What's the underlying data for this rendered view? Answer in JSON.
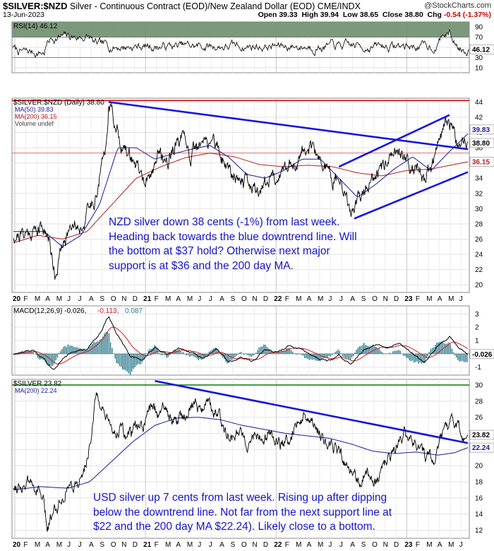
{
  "header": {
    "symbol": "$SILVER:$NZD",
    "description": "Silver - Continuous Contract (EOD)/New Zealand Dollar (EOD) CME/INDX",
    "date": "13-Jun-2023",
    "brand": "@StockCharts.com",
    "ohlc": {
      "open_label": "Open",
      "open": "39.33",
      "high_label": "High",
      "high": "39.94",
      "low_label": "Low",
      "low": "38.65",
      "close_label": "Close",
      "close": "38.80",
      "chg_label": "Chg",
      "chg": "-0.54 (-1.37%)"
    }
  },
  "annotations": {
    "nzd": [
      "NZD silver down 38 cents (-1%) from last week.",
      "Heading back towards the blue downtrend line. Will",
      "the bottom at $37 hold? Otherwise next major",
      "support is at $36 and the 200 day MA."
    ],
    "usd": [
      "USD silver up 7 cents from last week. Rising up after dipping",
      "below the downtrend line. Not far from the next support line at",
      "$22 and the 200 day MA $22.24). Likely close to a bottom."
    ]
  },
  "colors": {
    "price": "#000000",
    "ma50": "#1a1a9a",
    "ma200": "#b02020",
    "trend": "#1515e0",
    "support": "#d40000",
    "green": "#008000",
    "rsi_fill": "#6e8e6e",
    "macd_hist": "#2e7a8a"
  },
  "chart_data": [
    {
      "type": "line",
      "panel": "rsi",
      "legend": "RSI(14) 46.12",
      "yticks": [
        10,
        30,
        50,
        70,
        90
      ],
      "ylim": [
        0,
        100
      ],
      "reference_lines": [
        30,
        70
      ],
      "value_label": "46.12",
      "last": 46.12
    },
    {
      "type": "line",
      "panel": "silver_nzd",
      "legend_title": "$SILVER:$NZD (Daily) 38.80",
      "legend": [
        "MA(50) 39.83",
        "MA(200) 36.15",
        "Volume undef"
      ],
      "ylim": [
        19,
        44.5
      ],
      "yticks": [
        20,
        22,
        24,
        26,
        28,
        30,
        32,
        34,
        36,
        38,
        40,
        42,
        44
      ],
      "x_labels": [
        "20",
        "F",
        "M",
        "A",
        "M",
        "J",
        "J",
        "A",
        "S",
        "O",
        "N",
        "D",
        "21",
        "F",
        "M",
        "A",
        "M",
        "J",
        "J",
        "A",
        "S",
        "O",
        "N",
        "D",
        "22",
        "F",
        "M",
        "A",
        "M",
        "J",
        "J",
        "A",
        "S",
        "O",
        "N",
        "D",
        "23",
        "F",
        "M",
        "A",
        "M",
        "J"
      ],
      "x_bold": [
        "20",
        "21",
        "22",
        "23"
      ],
      "key_points": [
        [
          0,
          26.5
        ],
        [
          3,
          27
        ],
        [
          4.5,
          27.5
        ],
        [
          5.5,
          27
        ],
        [
          6.8,
          21.5
        ],
        [
          7.6,
          24
        ],
        [
          8.3,
          25.5
        ],
        [
          9.5,
          28.5
        ],
        [
          11,
          27.5
        ],
        [
          13.5,
          32
        ],
        [
          15,
          38
        ],
        [
          15.5,
          43.8
        ],
        [
          16.5,
          41.5
        ],
        [
          18,
          37.5
        ],
        [
          19.5,
          36.5
        ],
        [
          21,
          34
        ],
        [
          22,
          33
        ],
        [
          23.5,
          37.5
        ],
        [
          25,
          36
        ],
        [
          26,
          38
        ],
        [
          27.5,
          39
        ],
        [
          29,
          37
        ],
        [
          30.5,
          38.2
        ],
        [
          32.5,
          39.2
        ],
        [
          34,
          36.5
        ],
        [
          35.5,
          35
        ],
        [
          37,
          34
        ],
        [
          38.5,
          33
        ],
        [
          40,
          32.5
        ],
        [
          41.5,
          33.8
        ],
        [
          43,
          34.5
        ],
        [
          44.5,
          35.5
        ],
        [
          46,
          36
        ],
        [
          47.5,
          38.5
        ],
        [
          49,
          37
        ],
        [
          50.5,
          36
        ],
        [
          52,
          34
        ],
        [
          53.5,
          33
        ],
        [
          54.5,
          30
        ],
        [
          55.5,
          29.5
        ],
        [
          56.5,
          31.5
        ],
        [
          58,
          33.5
        ],
        [
          59.5,
          35
        ],
        [
          61,
          35.5
        ],
        [
          62.5,
          38
        ],
        [
          64,
          36.5
        ],
        [
          65.5,
          35
        ],
        [
          67,
          34
        ],
        [
          68,
          35.5
        ],
        [
          69.5,
          39
        ],
        [
          70.5,
          41.5
        ],
        [
          71.5,
          40.5
        ],
        [
          72.5,
          38.5
        ],
        [
          73.5,
          39.5
        ],
        [
          74,
          38.8
        ]
      ],
      "ma50": [
        [
          5,
          27
        ],
        [
          8,
          25
        ],
        [
          11,
          26.5
        ],
        [
          14,
          30.5
        ],
        [
          17,
          38
        ],
        [
          20,
          38
        ],
        [
          23,
          36.5
        ],
        [
          26,
          37.2
        ],
        [
          29,
          37.8
        ],
        [
          32,
          38.3
        ],
        [
          35,
          36.8
        ],
        [
          38,
          34.5
        ],
        [
          41,
          34
        ],
        [
          44,
          35
        ],
        [
          47,
          36.5
        ],
        [
          50,
          36.5
        ],
        [
          53,
          34
        ],
        [
          56,
          31.5
        ],
        [
          59,
          33.2
        ],
        [
          62,
          35.2
        ],
        [
          65,
          36.8
        ],
        [
          68,
          35
        ],
        [
          71,
          37.5
        ],
        [
          74,
          39.83
        ]
      ],
      "ma200": [
        [
          0,
          25.5
        ],
        [
          4,
          26.5
        ],
        [
          8,
          26
        ],
        [
          12,
          27
        ],
        [
          16,
          30.5
        ],
        [
          20,
          34
        ],
        [
          24,
          35.5
        ],
        [
          28,
          36.7
        ],
        [
          32,
          37.3
        ],
        [
          36,
          36.8
        ],
        [
          40,
          35.8
        ],
        [
          44,
          35.5
        ],
        [
          48,
          35.7
        ],
        [
          52,
          35.5
        ],
        [
          56,
          34.7
        ],
        [
          60,
          34.3
        ],
        [
          64,
          35
        ],
        [
          68,
          35.2
        ],
        [
          74,
          36.15
        ]
      ],
      "horizontal_line": 44.2,
      "support_line": 37.3,
      "downtrend": [
        [
          15.5,
          44
        ],
        [
          74,
          37.8
        ]
      ],
      "channel_upper": [
        [
          53,
          35.5
        ],
        [
          71,
          42.3
        ]
      ],
      "channel_lower": [
        [
          55.5,
          28.7
        ],
        [
          74,
          34.8
        ]
      ],
      "value_labels": [
        "39.83",
        "38.80",
        "36.15"
      ],
      "last_values": [
        39.83,
        38.8,
        36.15
      ]
    },
    {
      "type": "line",
      "panel": "macd",
      "legend": [
        "MACD(12,26,9) -0.026,",
        "-0.113,",
        "0.087"
      ],
      "ylim": [
        -1.6,
        3.6
      ],
      "yticks": [
        -1,
        0,
        1,
        2,
        3
      ],
      "value_label": "-0.026",
      "key_points": [
        [
          0,
          0
        ],
        [
          3,
          0.2
        ],
        [
          5,
          -0.3
        ],
        [
          6.5,
          -1.1
        ],
        [
          8,
          -0.3
        ],
        [
          10,
          0.3
        ],
        [
          12,
          0.3
        ],
        [
          14,
          1.5
        ],
        [
          15.5,
          2.8
        ],
        [
          17,
          1.4
        ],
        [
          19,
          -0.2
        ],
        [
          21,
          -0.4
        ],
        [
          23,
          0.5
        ],
        [
          25,
          -0.1
        ],
        [
          27,
          0.4
        ],
        [
          29,
          0.1
        ],
        [
          31,
          -0.3
        ],
        [
          33,
          0.5
        ],
        [
          35,
          -0.5
        ],
        [
          37,
          -0.3
        ],
        [
          39,
          -0.6
        ],
        [
          41,
          0.3
        ],
        [
          43,
          0.1
        ],
        [
          45,
          0.6
        ],
        [
          47,
          0.3
        ],
        [
          49,
          -0.3
        ],
        [
          51,
          -0.6
        ],
        [
          53,
          -0.2
        ],
        [
          55,
          -0.9
        ],
        [
          57,
          0.2
        ],
        [
          59,
          0.7
        ],
        [
          61,
          0.4
        ],
        [
          63,
          0.9
        ],
        [
          65,
          0
        ],
        [
          67,
          -0.7
        ],
        [
          69,
          0.5
        ],
        [
          71,
          1.3
        ],
        [
          72.5,
          0.6
        ],
        [
          74,
          -0.03
        ]
      ]
    },
    {
      "type": "line",
      "panel": "silver_usd",
      "legend": [
        "$SILVER 23.82",
        "MA(200) 22.24"
      ],
      "ylim": [
        11,
        30.7
      ],
      "yticks": [
        12,
        14,
        16,
        18,
        20,
        22,
        24,
        26,
        28,
        30
      ],
      "x_labels": [
        "20",
        "F",
        "M",
        "A",
        "M",
        "J",
        "J",
        "A",
        "S",
        "O",
        "N",
        "D",
        "21",
        "F",
        "M",
        "A",
        "M",
        "J",
        "J",
        "A",
        "S",
        "O",
        "N",
        "D",
        "22",
        "F",
        "M",
        "A",
        "M",
        "J",
        "J",
        "A",
        "S",
        "O",
        "N",
        "D",
        "23",
        "F",
        "M",
        "A",
        "M",
        "J"
      ],
      "x_bold": [
        "20",
        "21",
        "22",
        "23"
      ],
      "key_points": [
        [
          0,
          17.5
        ],
        [
          3,
          17.8
        ],
        [
          4.5,
          17
        ],
        [
          5.5,
          15.5
        ],
        [
          6.2,
          12
        ],
        [
          7.2,
          14.5
        ],
        [
          8.5,
          15.5
        ],
        [
          10,
          17.5
        ],
        [
          12.5,
          18
        ],
        [
          14,
          22.5
        ],
        [
          15.3,
          29
        ],
        [
          16.5,
          26.5
        ],
        [
          18,
          24
        ],
        [
          19.5,
          24.5
        ],
        [
          21,
          23.5
        ],
        [
          22.5,
          24.5
        ],
        [
          24,
          25
        ],
        [
          25.5,
          27.5
        ],
        [
          26.5,
          26.5
        ],
        [
          27.5,
          28
        ],
        [
          28.5,
          26
        ],
        [
          30,
          25.5
        ],
        [
          31.5,
          26.5
        ],
        [
          33,
          28
        ],
        [
          34,
          27
        ],
        [
          35.5,
          28
        ],
        [
          37,
          26.5
        ],
        [
          38.5,
          25.5
        ],
        [
          40,
          23.5
        ],
        [
          41.5,
          24.5
        ],
        [
          43,
          23
        ],
        [
          44.5,
          24
        ],
        [
          46,
          23
        ],
        [
          47.5,
          24
        ],
        [
          49,
          22.5
        ],
        [
          50.5,
          23
        ],
        [
          52,
          25
        ],
        [
          53.5,
          26.5
        ],
        [
          54.5,
          25
        ],
        [
          56,
          24.5
        ],
        [
          57.5,
          23
        ],
        [
          59,
          22
        ],
        [
          60.5,
          21
        ],
        [
          62,
          19
        ],
        [
          63.5,
          18
        ],
        [
          65,
          19.5
        ],
        [
          66.5,
          18
        ],
        [
          68,
          19.5
        ],
        [
          69.5,
          21.5
        ],
        [
          71,
          23.5
        ],
        [
          72,
          24
        ],
        [
          73,
          23.5
        ],
        [
          74,
          22.5
        ],
        [
          75.5,
          21.5
        ],
        [
          77,
          20.5
        ],
        [
          78,
          22.5
        ],
        [
          79.5,
          24.5
        ],
        [
          80.5,
          26
        ],
        [
          81.5,
          25
        ],
        [
          82.5,
          23.5
        ],
        [
          83.5,
          23.82
        ]
      ],
      "ma200": [
        [
          0,
          17
        ],
        [
          5,
          17.4
        ],
        [
          10,
          17.2
        ],
        [
          14,
          18
        ],
        [
          18,
          20.5
        ],
        [
          22,
          23
        ],
        [
          26,
          25
        ],
        [
          30,
          25.9
        ],
        [
          34,
          26
        ],
        [
          38,
          25.7
        ],
        [
          42,
          25
        ],
        [
          46,
          24.5
        ],
        [
          50,
          24
        ],
        [
          54,
          23.7
        ],
        [
          58,
          23.4
        ],
        [
          62,
          22.7
        ],
        [
          66,
          21.8
        ],
        [
          70,
          21.5
        ],
        [
          74,
          21.7
        ],
        [
          78,
          21.3
        ],
        [
          81,
          21.6
        ],
        [
          83.5,
          22.24
        ]
      ],
      "horizontal_line": 30,
      "downtrend": [
        [
          26,
          30.5
        ],
        [
          83.5,
          22.8
        ]
      ],
      "value_labels": [
        "23.82",
        "22.24"
      ],
      "last_values": [
        23.82,
        22.24
      ]
    }
  ]
}
